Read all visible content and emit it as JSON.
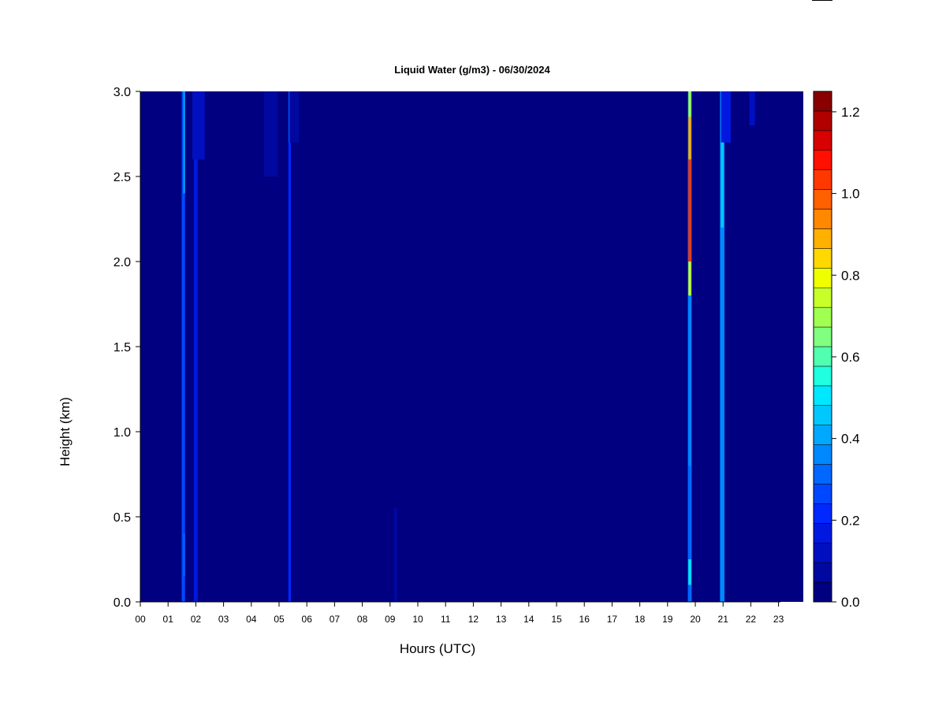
{
  "chart_data": {
    "type": "heatmap",
    "title": "Liquid Water (g/m3) - 06/30/2024",
    "xlabel": "Hours (UTC)",
    "ylabel": "Height (km)",
    "xlim": [
      0,
      24
    ],
    "ylim": [
      0.0,
      3.0
    ],
    "x_ticks": [
      "00",
      "01",
      "02",
      "03",
      "04",
      "05",
      "06",
      "07",
      "08",
      "09",
      "10",
      "11",
      "12",
      "13",
      "14",
      "15",
      "16",
      "17",
      "18",
      "19",
      "20",
      "21",
      "22",
      "23"
    ],
    "y_ticks": [
      "0.0",
      "0.5",
      "1.0",
      "1.5",
      "2.0",
      "2.5",
      "3.0"
    ],
    "background_value": 0.0,
    "colorbar": {
      "range": [
        0.0,
        1.25
      ],
      "ticks": [
        {
          "value": 0.0,
          "label": "0.0"
        },
        {
          "value": 0.2,
          "label": "0.2"
        },
        {
          "value": 0.4,
          "label": "0.4"
        },
        {
          "value": 0.6,
          "label": "0.6"
        },
        {
          "value": 0.8,
          "label": "0.8"
        },
        {
          "value": 1.0,
          "label": "1.0"
        },
        {
          "value": 1.2,
          "label": "1.2"
        }
      ],
      "colors": [
        "#000080",
        "#0008a0",
        "#0010c0",
        "#0018e0",
        "#0028ff",
        "#0048ff",
        "#0068ff",
        "#0088ff",
        "#00a8ff",
        "#00c8ff",
        "#00e8ff",
        "#20ffe0",
        "#50ffb0",
        "#80ff80",
        "#a0ff50",
        "#c8ff28",
        "#f0ff00",
        "#ffd800",
        "#ffb000",
        "#ff8800",
        "#ff6000",
        "#ff3800",
        "#ff1000",
        "#d80000",
        "#b00000",
        "#880000"
      ]
    },
    "features": [
      {
        "hour": 1.55,
        "width_h": 0.12,
        "y0": 0.0,
        "y1": 3.0,
        "value": 0.28
      },
      {
        "hour": 1.58,
        "width_h": 0.06,
        "y0": 2.4,
        "y1": 3.0,
        "value": 0.42
      },
      {
        "hour": 1.58,
        "width_h": 0.06,
        "y0": 0.15,
        "y1": 0.4,
        "value": 0.32
      },
      {
        "hour": 2.0,
        "width_h": 0.14,
        "y0": 0.0,
        "y1": 3.0,
        "value": 0.18
      },
      {
        "hour": 2.1,
        "width_h": 0.45,
        "y0": 2.6,
        "y1": 3.0,
        "value": 0.12
      },
      {
        "hour": 4.7,
        "width_h": 0.5,
        "y0": 2.5,
        "y1": 3.0,
        "value": 0.08
      },
      {
        "hour": 5.38,
        "width_h": 0.09,
        "y0": 0.0,
        "y1": 3.0,
        "value": 0.2
      },
      {
        "hour": 5.38,
        "width_h": 0.05,
        "y0": 2.7,
        "y1": 3.0,
        "value": 0.35
      },
      {
        "hour": 5.55,
        "width_h": 0.35,
        "y0": 2.7,
        "y1": 3.0,
        "value": 0.08
      },
      {
        "hour": 9.2,
        "width_h": 0.12,
        "y0": 0.0,
        "y1": 0.55,
        "value": 0.08
      },
      {
        "hour": 19.8,
        "width_h": 0.14,
        "y0": 0.0,
        "y1": 3.0,
        "value": 0.3
      },
      {
        "hour": 19.8,
        "width_h": 0.1,
        "y0": 0.8,
        "y1": 1.8,
        "value": 0.38
      },
      {
        "hour": 19.8,
        "width_h": 0.1,
        "y0": 0.1,
        "y1": 0.25,
        "value": 0.5
      },
      {
        "hour": 19.8,
        "width_h": 0.1,
        "y0": 1.8,
        "y1": 2.0,
        "value": 0.75
      },
      {
        "hour": 19.8,
        "width_h": 0.1,
        "y0": 2.0,
        "y1": 2.6,
        "value": 1.05
      },
      {
        "hour": 19.8,
        "width_h": 0.1,
        "y0": 2.6,
        "y1": 2.85,
        "value": 0.9
      },
      {
        "hour": 19.8,
        "width_h": 0.1,
        "y0": 2.85,
        "y1": 3.0,
        "value": 0.72
      },
      {
        "hour": 20.97,
        "width_h": 0.16,
        "y0": 0.0,
        "y1": 3.0,
        "value": 0.36
      },
      {
        "hour": 20.97,
        "width_h": 0.1,
        "y0": 2.2,
        "y1": 3.0,
        "value": 0.46
      },
      {
        "hour": 21.1,
        "width_h": 0.35,
        "y0": 2.7,
        "y1": 3.0,
        "value": 0.15
      },
      {
        "hour": 22.05,
        "width_h": 0.2,
        "y0": 2.8,
        "y1": 3.0,
        "value": 0.1
      }
    ]
  }
}
